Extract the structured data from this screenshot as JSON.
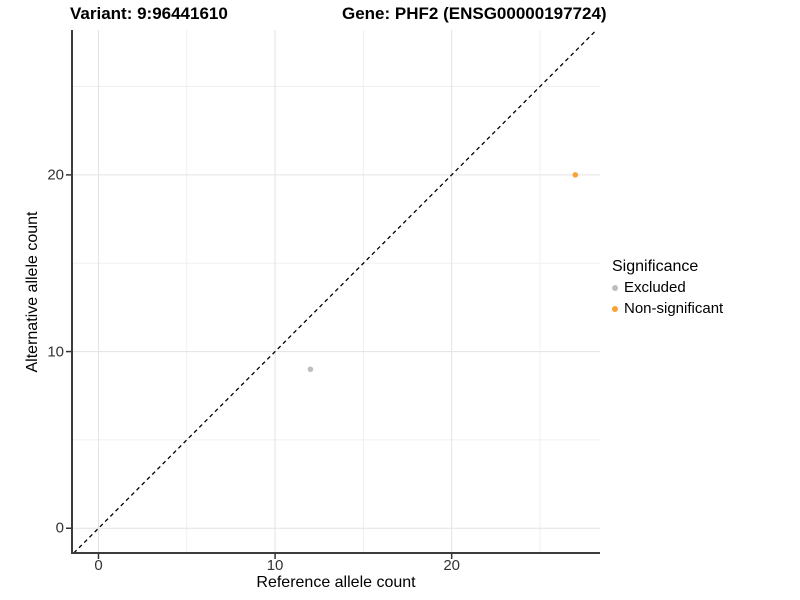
{
  "header": {
    "variant_title": "Variant: 9:96441610",
    "gene_title": "Gene: PHF2 (ENSG00000197724)"
  },
  "axes": {
    "x": {
      "label": "Reference allele count",
      "ticks": [
        "0",
        "10",
        "20"
      ]
    },
    "y": {
      "label": "Alternative allele count",
      "ticks": [
        "0",
        "10",
        "20"
      ]
    }
  },
  "legend": {
    "title": "Significance",
    "items": [
      {
        "label": "Excluded",
        "color": "#bebebe"
      },
      {
        "label": "Non-significant",
        "color": "#f9a334"
      }
    ]
  },
  "chart_data": {
    "type": "scatter",
    "title": "Variant: 9:96441610   Gene: PHF2 (ENSG00000197724)",
    "xlabel": "Reference allele count",
    "ylabel": "Alternative allele count",
    "xlim": [
      -1.5,
      28.4
    ],
    "ylim": [
      -1.4,
      28.2
    ],
    "x_ticks": [
      0,
      10,
      20
    ],
    "y_ticks": [
      0,
      10,
      20
    ],
    "x_minor_ticks": [
      5,
      15,
      25
    ],
    "y_minor_ticks": [
      5,
      15,
      25
    ],
    "grid": true,
    "legend_position": "right",
    "series": [
      {
        "name": "Excluded",
        "color": "#bebebe",
        "points": [
          [
            12,
            9
          ]
        ]
      },
      {
        "name": "Non-significant",
        "color": "#f9a334",
        "points": [
          [
            27,
            20
          ]
        ]
      }
    ],
    "identity_line": {
      "equation": "y = x",
      "style": "dashed",
      "color": "#000000"
    },
    "colors": {
      "grid_major": "#e3e3e3",
      "grid_minor": "#f0f0f0",
      "axis_line": "#3c3c3c",
      "tick_mark": "#333333"
    }
  }
}
